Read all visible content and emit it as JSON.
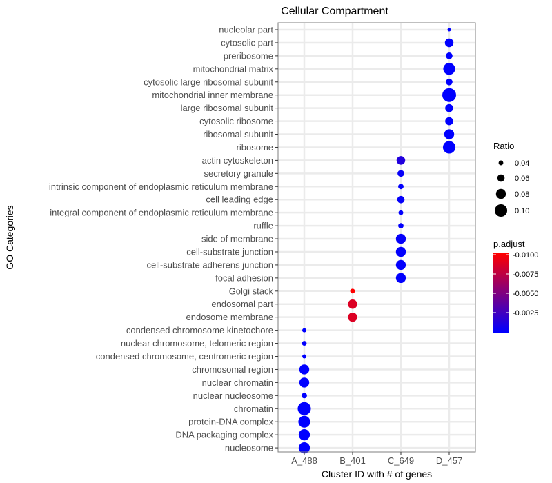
{
  "chart_data": {
    "type": "scatter",
    "title": "Cellular Compartment",
    "xlabel": "Cluster ID with # of genes",
    "ylabel": "GO Categories",
    "x_categories": [
      "A_488",
      "B_401",
      "C_649",
      "D_457"
    ],
    "y_categories": [
      "nucleolar part",
      "cytosolic part",
      "preribosome",
      "mitochondrial matrix",
      "cytosolic large ribosomal subunit",
      "mitochondrial inner membrane",
      "large ribosomal subunit",
      "cytosolic ribosome",
      "ribosomal subunit",
      "ribosome",
      "actin cytoskeleton",
      "secretory granule",
      "intrinsic component of endoplasmic reticulum membrane",
      "cell leading edge",
      "integral component of endoplasmic reticulum membrane",
      "ruffle",
      "side of membrane",
      "cell-substrate junction",
      "cell-substrate adherens junction",
      "focal adhesion",
      "Golgi stack",
      "endosomal part",
      "endosome membrane",
      "condensed chromosome kinetochore",
      "nuclear chromosome, telomeric region",
      "condensed chromosome, centromeric region",
      "chromosomal region",
      "nuclear chromatin",
      "nuclear nucleosome",
      "chromatin",
      "protein-DNA complex",
      "DNA packaging complex",
      "nucleosome"
    ],
    "points": [
      {
        "x": "D_457",
        "y": "nucleolar part",
        "ratio": 0.03,
        "p_adjust": 0.0001
      },
      {
        "x": "D_457",
        "y": "cytosolic part",
        "ratio": 0.07,
        "p_adjust": 0.0001
      },
      {
        "x": "D_457",
        "y": "preribosome",
        "ratio": 0.055,
        "p_adjust": 0.0001
      },
      {
        "x": "D_457",
        "y": "mitochondrial matrix",
        "ratio": 0.095,
        "p_adjust": 0.0001
      },
      {
        "x": "D_457",
        "y": "cytosolic large ribosomal subunit",
        "ratio": 0.055,
        "p_adjust": 0.0001
      },
      {
        "x": "D_457",
        "y": "mitochondrial inner membrane",
        "ratio": 0.11,
        "p_adjust": 0.0001
      },
      {
        "x": "D_457",
        "y": "large ribosomal subunit",
        "ratio": 0.065,
        "p_adjust": 0.0001
      },
      {
        "x": "D_457",
        "y": "cytosolic ribosome",
        "ratio": 0.065,
        "p_adjust": 0.0001
      },
      {
        "x": "D_457",
        "y": "ribosomal subunit",
        "ratio": 0.08,
        "p_adjust": 0.0001
      },
      {
        "x": "D_457",
        "y": "ribosome",
        "ratio": 0.1,
        "p_adjust": 0.0001
      },
      {
        "x": "C_649",
        "y": "actin cytoskeleton",
        "ratio": 0.07,
        "p_adjust": 0.0015
      },
      {
        "x": "C_649",
        "y": "secretory granule",
        "ratio": 0.055,
        "p_adjust": 0.0004
      },
      {
        "x": "C_649",
        "y": "intrinsic component of endoplasmic reticulum membrane",
        "ratio": 0.045,
        "p_adjust": 0.0002
      },
      {
        "x": "C_649",
        "y": "cell leading edge",
        "ratio": 0.06,
        "p_adjust": 0.0003
      },
      {
        "x": "C_649",
        "y": "integral component of endoplasmic reticulum membrane",
        "ratio": 0.04,
        "p_adjust": 0.0002
      },
      {
        "x": "C_649",
        "y": "ruffle",
        "ratio": 0.045,
        "p_adjust": 0.0002
      },
      {
        "x": "C_649",
        "y": "side of membrane",
        "ratio": 0.08,
        "p_adjust": 0.0003
      },
      {
        "x": "C_649",
        "y": "cell-substrate junction",
        "ratio": 0.08,
        "p_adjust": 0.0002
      },
      {
        "x": "C_649",
        "y": "cell-substrate adherens junction",
        "ratio": 0.08,
        "p_adjust": 0.0002
      },
      {
        "x": "C_649",
        "y": "focal adhesion",
        "ratio": 0.08,
        "p_adjust": 0.0002
      },
      {
        "x": "B_401",
        "y": "Golgi stack",
        "ratio": 0.04,
        "p_adjust": 0.011
      },
      {
        "x": "B_401",
        "y": "endosomal part",
        "ratio": 0.075,
        "p_adjust": 0.0095
      },
      {
        "x": "B_401",
        "y": "endosome membrane",
        "ratio": 0.075,
        "p_adjust": 0.0095
      },
      {
        "x": "A_488",
        "y": "condensed chromosome kinetochore",
        "ratio": 0.035,
        "p_adjust": 0.0001
      },
      {
        "x": "A_488",
        "y": "nuclear chromosome, telomeric region",
        "ratio": 0.04,
        "p_adjust": 0.0002
      },
      {
        "x": "A_488",
        "y": "condensed chromosome, centromeric region",
        "ratio": 0.035,
        "p_adjust": 0.0001
      },
      {
        "x": "A_488",
        "y": "chromosomal region",
        "ratio": 0.08,
        "p_adjust": 0.0001
      },
      {
        "x": "A_488",
        "y": "nuclear chromatin",
        "ratio": 0.08,
        "p_adjust": 0.0001
      },
      {
        "x": "A_488",
        "y": "nuclear nucleosome",
        "ratio": 0.045,
        "p_adjust": 0.0001
      },
      {
        "x": "A_488",
        "y": "chromatin",
        "ratio": 0.105,
        "p_adjust": 0.0001
      },
      {
        "x": "A_488",
        "y": "protein-DNA complex",
        "ratio": 0.095,
        "p_adjust": 0.0001
      },
      {
        "x": "A_488",
        "y": "DNA packaging complex",
        "ratio": 0.09,
        "p_adjust": 0.0001
      },
      {
        "x": "A_488",
        "y": "nucleosome",
        "ratio": 0.09,
        "p_adjust": 0.0001
      }
    ],
    "size_legend": {
      "title": "Ratio",
      "values": [
        0.04,
        0.06,
        0.08,
        0.1
      ],
      "labels": [
        "0.04",
        "0.06",
        "0.08",
        "0.10"
      ]
    },
    "color_legend": {
      "title": "p.adjust",
      "labels": [
        "-0.0100",
        "-0.0075",
        "-0.0050",
        "-0.0025"
      ],
      "colors": {
        "high": "#ff0000",
        "low": "#0000ff"
      },
      "range": [
        0.0001,
        0.011
      ]
    },
    "grid": true,
    "legend_position": "right",
    "colors": {
      "panel_background": "#ffffff",
      "grid": "#ebebeb",
      "panel_border": "#7f7f7f"
    }
  }
}
